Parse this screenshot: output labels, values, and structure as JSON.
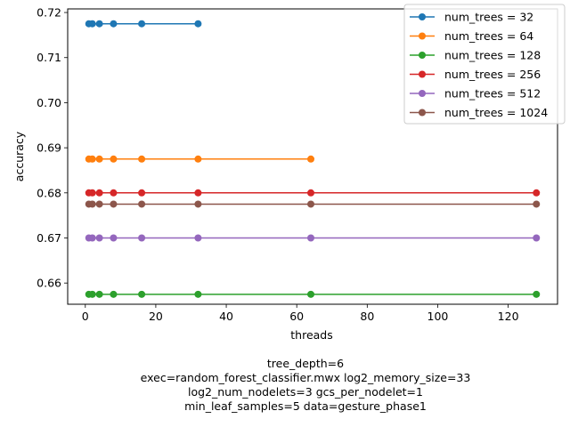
{
  "chart_data": {
    "type": "line",
    "xlabel": "threads",
    "ylabel": "accuracy",
    "xlim": [
      -5,
      134
    ],
    "ylim": [
      0.6553,
      0.7208
    ],
    "xticks": [
      0,
      20,
      40,
      60,
      80,
      100,
      120
    ],
    "yticks": [
      0.66,
      0.67,
      0.68,
      0.69,
      0.7,
      0.71,
      0.72
    ],
    "ytick_labels": [
      "0.66",
      "0.67",
      "0.68",
      "0.69",
      "0.70",
      "0.71",
      "0.72"
    ],
    "legend_position": "top-right",
    "grid": false,
    "series": [
      {
        "name": "num_trees = 32",
        "color": "#1f77b4",
        "x": [
          1,
          2,
          4,
          8,
          16,
          32
        ],
        "y": [
          0.7175,
          0.7175,
          0.7175,
          0.7175,
          0.7175,
          0.7175
        ]
      },
      {
        "name": "num_trees = 64",
        "color": "#ff7f0e",
        "x": [
          1,
          2,
          4,
          8,
          16,
          32,
          64
        ],
        "y": [
          0.6875,
          0.6875,
          0.6875,
          0.6875,
          0.6875,
          0.6875,
          0.6875
        ]
      },
      {
        "name": "num_trees = 128",
        "color": "#2ca02c",
        "x": [
          1,
          2,
          4,
          8,
          16,
          32,
          64,
          128
        ],
        "y": [
          0.6575,
          0.6575,
          0.6575,
          0.6575,
          0.6575,
          0.6575,
          0.6575,
          0.6575
        ]
      },
      {
        "name": "num_trees = 256",
        "color": "#d62728",
        "x": [
          1,
          2,
          4,
          8,
          16,
          32,
          64,
          128
        ],
        "y": [
          0.68,
          0.68,
          0.68,
          0.68,
          0.68,
          0.68,
          0.68,
          0.68
        ]
      },
      {
        "name": "num_trees = 512",
        "color": "#9467bd",
        "x": [
          1,
          2,
          4,
          8,
          16,
          32,
          64,
          128
        ],
        "y": [
          0.67,
          0.67,
          0.67,
          0.67,
          0.67,
          0.67,
          0.67,
          0.67
        ]
      },
      {
        "name": "num_trees = 1024",
        "color": "#8c564b",
        "x": [
          1,
          2,
          4,
          8,
          16,
          32,
          64,
          128
        ],
        "y": [
          0.6775,
          0.6775,
          0.6775,
          0.6775,
          0.6775,
          0.6775,
          0.6775,
          0.6775
        ]
      }
    ],
    "footer_lines": [
      "tree_depth=6",
      "exec=random_forest_classifier.mwx   log2_memory_size=33",
      "log2_num_nodelets=3   gcs_per_nodelet=1",
      "min_leaf_samples=5   data=gesture_phase1"
    ]
  }
}
